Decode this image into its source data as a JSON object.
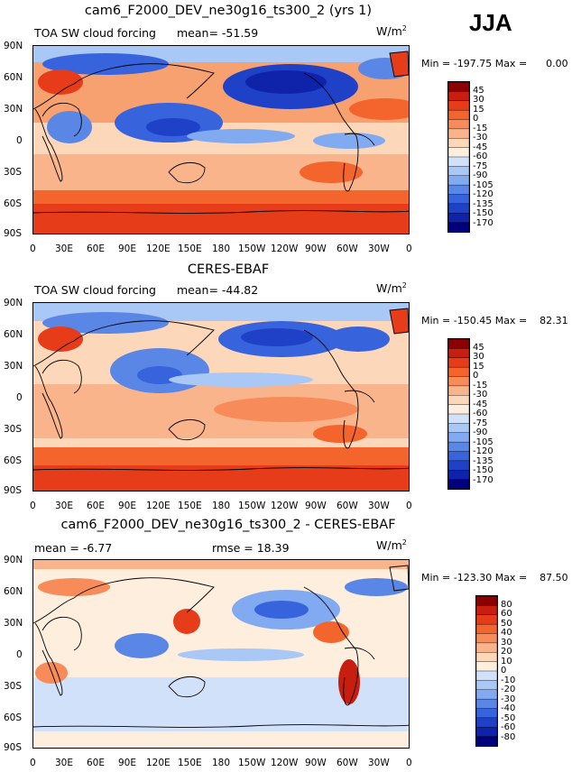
{
  "header": {
    "season": "JJA"
  },
  "units_label": "W/m",
  "units_sup": "2",
  "chart_data": [
    {
      "type": "heatmap",
      "title": "cam6_F2000_DEV_ne30g16_ts300_2 (yrs 1)",
      "left_label": "TOA SW cloud forcing",
      "mean_label": "mean=",
      "mean_value": "-51.59",
      "min_label": "Min =",
      "min_value": "-197.75",
      "max_label": "Max =",
      "max_value": "0.00",
      "lat_ticks": [
        "90N",
        "60N",
        "30N",
        "0",
        "30S",
        "60S",
        "90S"
      ],
      "lon_ticks": [
        "0",
        "30E",
        "60E",
        "90E",
        "120E",
        "150E",
        "180",
        "150W",
        "120W",
        "90W",
        "60W",
        "30W",
        "0"
      ],
      "levels": [
        "45",
        "30",
        "15",
        "0",
        "-15",
        "-30",
        "-45",
        "-60",
        "-75",
        "-90",
        "-105",
        "-120",
        "-135",
        "-150",
        "-170"
      ],
      "colors": [
        "#8b0000",
        "#c81e0f",
        "#e63c19",
        "#f4642d",
        "#f78c5a",
        "#f9b48c",
        "#fcd7b9",
        "#fdeedd",
        "#d2e1fa",
        "#aac8f5",
        "#82aaf0",
        "#5a87e6",
        "#3764dc",
        "#1e41c8",
        "#0f23aa",
        "#00007d"
      ]
    },
    {
      "type": "heatmap",
      "title": "CERES-EBAF",
      "left_label": "TOA SW cloud forcing",
      "mean_label": "mean=",
      "mean_value": "-44.82",
      "min_label": "Min =",
      "min_value": "-150.45",
      "max_label": "Max =",
      "max_value": "82.31",
      "lat_ticks": [
        "90N",
        "60N",
        "30N",
        "0",
        "30S",
        "60S",
        "90S"
      ],
      "lon_ticks": [
        "0",
        "30E",
        "60E",
        "90E",
        "120E",
        "150E",
        "180",
        "150W",
        "120W",
        "90W",
        "60W",
        "30W",
        "0"
      ],
      "levels": [
        "45",
        "30",
        "15",
        "0",
        "-15",
        "-30",
        "-45",
        "-60",
        "-75",
        "-90",
        "-105",
        "-120",
        "-135",
        "-150",
        "-170"
      ],
      "colors": [
        "#8b0000",
        "#c81e0f",
        "#e63c19",
        "#f4642d",
        "#f78c5a",
        "#f9b48c",
        "#fcd7b9",
        "#fdeedd",
        "#d2e1fa",
        "#aac8f5",
        "#82aaf0",
        "#5a87e6",
        "#3764dc",
        "#1e41c8",
        "#0f23aa",
        "#00007d"
      ]
    },
    {
      "type": "heatmap",
      "title": "cam6_F2000_DEV_ne30g16_ts300_2 - CERES-EBAF",
      "mean_label": "mean =",
      "mean_value": "-6.77",
      "rmse_label": "rmse =",
      "rmse_value": "18.39",
      "min_label": "Min =",
      "min_value": "-123.30",
      "max_label": "Max =",
      "max_value": "87.50",
      "lat_ticks": [
        "90N",
        "60N",
        "30N",
        "0",
        "30S",
        "60S",
        "90S"
      ],
      "lon_ticks": [
        "0",
        "30E",
        "60E",
        "90E",
        "120E",
        "150E",
        "180",
        "150W",
        "120W",
        "90W",
        "60W",
        "30W",
        "0"
      ],
      "levels": [
        "80",
        "60",
        "50",
        "40",
        "30",
        "20",
        "10",
        "0",
        "-10",
        "-20",
        "-30",
        "-40",
        "-50",
        "-60",
        "-80"
      ],
      "colors": [
        "#8b0000",
        "#c81e0f",
        "#e63c19",
        "#f4642d",
        "#f78c5a",
        "#f9b48c",
        "#fcd7b9",
        "#fdeedd",
        "#d2e1fa",
        "#aac8f5",
        "#82aaf0",
        "#5a87e6",
        "#3764dc",
        "#1e41c8",
        "#0f23aa",
        "#00007d"
      ]
    }
  ]
}
